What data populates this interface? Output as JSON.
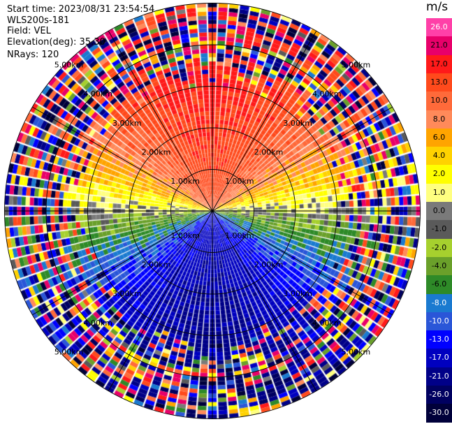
{
  "info": {
    "start_time": "Start time: 2023/08/31 23:54:54",
    "instrument": "WLS200s-181",
    "field": "Field: VEL",
    "elevation": "Elevation(deg): 35.30",
    "nrays": "NRays: 120"
  },
  "colorbar": {
    "title": "m/s",
    "bins": [
      {
        "label": "26.0",
        "color": "#ff40a8"
      },
      {
        "label": "21.0",
        "color": "#e8006a"
      },
      {
        "label": "17.0",
        "color": "#ff1a1a"
      },
      {
        "label": "13.0",
        "color": "#ff4a1c"
      },
      {
        "label": "10.0",
        "color": "#ff6a3a"
      },
      {
        "label": "8.0",
        "color": "#ff8a5a"
      },
      {
        "label": "6.0",
        "color": "#ffa400"
      },
      {
        "label": "4.0",
        "color": "#ffd200"
      },
      {
        "label": "2.0",
        "color": "#ffff00"
      },
      {
        "label": "1.0",
        "color": "#ffff80"
      },
      {
        "label": "0.0",
        "color": "#7a7a7a"
      },
      {
        "label": "-1.0",
        "color": "#5a5a5a"
      },
      {
        "label": "-2.0",
        "color": "#a6d02e"
      },
      {
        "label": "-4.0",
        "color": "#6aa02a"
      },
      {
        "label": "-6.0",
        "color": "#2e8a28"
      },
      {
        "label": "-8.0",
        "color": "#1a7ad0"
      },
      {
        "label": "-10.0",
        "color": "#2a56d8"
      },
      {
        "label": "-13.0",
        "color": "#0000ff"
      },
      {
        "label": "-17.0",
        "color": "#0000c0"
      },
      {
        "label": "-21.0",
        "color": "#000088"
      },
      {
        "label": "-26.0",
        "color": "#000060"
      },
      {
        "label": "-30.0",
        "color": "#00003a"
      }
    ]
  },
  "chart_data": {
    "type": "heatmap",
    "projection": "polar (PPI)",
    "rays": 120,
    "max_range_km": 5.0,
    "gate_spacing_km": 0.1,
    "range_rings_km": [
      1,
      2,
      3,
      4,
      5
    ],
    "ring_labels": [
      "1.00km",
      "2.00km",
      "3.00km",
      "4.00km",
      "5.00km"
    ],
    "value_range_mps": [
      -30.0,
      26.0
    ],
    "pattern": {
      "positive_max_direction": "north",
      "negative_max_direction": "south",
      "zero_line": "east-west",
      "clean_range_km": 3.0,
      "noisy_beyond_km": 3.6
    },
    "grid": true
  }
}
